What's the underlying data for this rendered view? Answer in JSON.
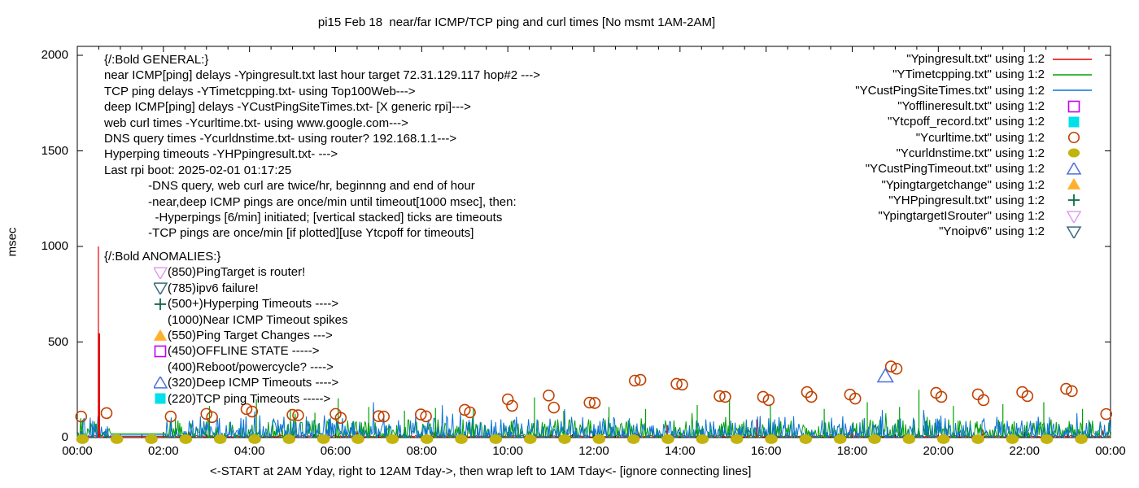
{
  "chart_data": {
    "type": "line",
    "title": "pi15 Feb 18  near/far ICMP/TCP ping and curl times [No msmt 1AM-2AM]",
    "xlabel": "<-START at 2AM Yday, right to 12AM Tday->, then wrap left to 1AM Tday<- [ignore connecting lines]",
    "ylabel": "msec",
    "ylim": [
      0,
      2000
    ],
    "xlim_hours": [
      0,
      24
    ],
    "y_ticks": [
      0,
      500,
      1000,
      1500,
      2000
    ],
    "x_ticks": [
      "00:00",
      "02:00",
      "04:00",
      "06:00",
      "08:00",
      "10:00",
      "12:00",
      "14:00",
      "16:00",
      "18:00",
      "20:00",
      "22:00",
      "00:00"
    ],
    "x_tick_hours": [
      0,
      2,
      4,
      6,
      8,
      10,
      12,
      14,
      16,
      18,
      20,
      22,
      24
    ],
    "x_minor_step_hours": 0.5,
    "grid": "off",
    "legend_position": "top-right",
    "no_measurement_gap_hours": [
      0.78,
      2.05
    ],
    "series": [
      {
        "name": "\"Ypingresult.txt\" using 1:2",
        "style": "line",
        "color": "#e60000",
        "seed": 11,
        "noise": {
          "base": 3,
          "amp": 8,
          "pow": 1.2,
          "spike_p": 0.012,
          "spike_amp": 40
        },
        "gap_value": 6,
        "impulses": [
          [
            0.49,
            1000,
            1.2
          ],
          [
            0.505,
            545,
            2.6
          ],
          [
            13.7,
            65,
            1
          ],
          [
            15.78,
            95,
            1
          ]
        ]
      },
      {
        "name": "\"YTimetcpping.txt\" using 1:2",
        "style": "line",
        "color": "#00a000",
        "seed": 23,
        "noise": {
          "base": 2,
          "amp": 95,
          "pow": 3,
          "spike_p": 0.05,
          "spike_amp": 65
        },
        "gap_value": 20
      },
      {
        "name": "\"YCustPingSiteTimes.txt\" using 1:2",
        "style": "line",
        "color": "#0b72d8",
        "seed": 37,
        "noise": {
          "base": 2,
          "amp": 112,
          "pow": 3,
          "spike_p": 0.03,
          "spike_amp": 85
        },
        "gap_value": 13
      },
      {
        "name": "\"Yofflineresult.txt\" using 1:2",
        "style": "points",
        "marker": "open-square",
        "color": "#c000f0",
        "points": []
      },
      {
        "name": "\"Ytcpoff_record.txt\" using 1:2",
        "style": "points",
        "marker": "filled-square",
        "color": "#00e0e8",
        "points": []
      },
      {
        "name": "\"Ycurltime.txt\" using 1:2",
        "style": "points",
        "marker": "open-circle",
        "color": "#c04000",
        "points": [
          [
            0.09,
            110
          ],
          [
            0.68,
            128
          ],
          [
            2.17,
            110
          ],
          [
            3.0,
            124
          ],
          [
            3.13,
            107
          ],
          [
            3.93,
            149
          ],
          [
            4.06,
            136
          ],
          [
            5.0,
            119
          ],
          [
            5.13,
            117
          ],
          [
            6.0,
            124
          ],
          [
            6.12,
            103
          ],
          [
            7.0,
            112
          ],
          [
            7.12,
            110
          ],
          [
            7.98,
            121
          ],
          [
            8.1,
            111
          ],
          [
            9.0,
            145
          ],
          [
            9.12,
            132
          ],
          [
            10.0,
            200
          ],
          [
            10.1,
            166
          ],
          [
            10.95,
            220
          ],
          [
            11.07,
            157
          ],
          [
            11.9,
            183
          ],
          [
            12.02,
            181
          ],
          [
            12.95,
            298
          ],
          [
            13.08,
            302
          ],
          [
            13.92,
            281
          ],
          [
            14.05,
            277
          ],
          [
            14.92,
            217
          ],
          [
            15.05,
            213
          ],
          [
            15.93,
            213
          ],
          [
            16.06,
            196
          ],
          [
            16.95,
            238
          ],
          [
            17.05,
            213
          ],
          [
            17.95,
            225
          ],
          [
            18.07,
            204
          ],
          [
            18.9,
            372
          ],
          [
            19.03,
            360
          ],
          [
            19.95,
            234
          ],
          [
            20.07,
            213
          ],
          [
            20.92,
            226
          ],
          [
            21.05,
            196
          ],
          [
            21.95,
            238
          ],
          [
            22.07,
            217
          ],
          [
            22.97,
            255
          ],
          [
            23.1,
            243
          ],
          [
            23.9,
            123
          ]
        ]
      },
      {
        "name": "\"Ycurldnstime.txt\" using 1:2",
        "style": "points",
        "marker": "filled-dot",
        "color": "#c2b40c",
        "dots": {
          "start": 0.12,
          "end": 23.98,
          "step": 0.8,
          "value": 0
        }
      },
      {
        "name": "\"YCustPingTimeout.txt\" using 1:2",
        "style": "points",
        "marker": "open-triangle-up",
        "color": "#4c6fe0",
        "points": [
          [
            18.77,
            320
          ]
        ]
      },
      {
        "name": "\"Ypingtargetchange\" using 1:2",
        "style": "points",
        "marker": "filled-triangle-up",
        "color": "#ffb02c",
        "points": []
      },
      {
        "name": "\"YHPpingresult.txt\" using 1:2",
        "style": "impulses",
        "marker": "plus",
        "color": "#0e6b46",
        "impulse_color": "#00a000",
        "impulses": [
          [
            2.28,
            100
          ],
          [
            3.07,
            165
          ],
          [
            4.16,
            200
          ],
          [
            4.95,
            150
          ],
          [
            5.52,
            130
          ],
          [
            6.06,
            205
          ],
          [
            6.77,
            160
          ],
          [
            7.6,
            140
          ],
          [
            8.32,
            155
          ],
          [
            9.2,
            150
          ],
          [
            10.62,
            210
          ],
          [
            11.3,
            140
          ],
          [
            12.35,
            160
          ],
          [
            13.2,
            150
          ],
          [
            14.4,
            170
          ],
          [
            15.15,
            200
          ],
          [
            16.1,
            175
          ],
          [
            17.35,
            150
          ],
          [
            18.35,
            185
          ],
          [
            19.1,
            160
          ],
          [
            19.55,
            250
          ],
          [
            20.35,
            165
          ],
          [
            21.5,
            175
          ],
          [
            22.45,
            185
          ],
          [
            23.35,
            150
          ]
        ]
      },
      {
        "name": "\"YpingtargetISrouter\" using 1:2",
        "style": "points",
        "marker": "open-triangle-down",
        "color": "#e09df0",
        "points": []
      },
      {
        "name": "\"Ynoipv6\" using 1:2",
        "style": "points",
        "marker": "open-triangle-down",
        "color": "#3a6b80",
        "points": []
      }
    ]
  },
  "annotations": {
    "general": [
      "{/:Bold GENERAL:}",
      "near ICMP[ping] delays -Ypingresult.txt last hour target 72.31.129.117 hop#2 --->",
      "TCP ping delays -YTimetcpping.txt- using Top100Web--->",
      "deep ICMP[ping] delays -YCustPingSiteTimes.txt- [X generic rpi]--->",
      "web curl times -Ycurltime.txt- using www.google.com--->",
      "DNS query times -Ycurldnstime.txt- using router? 192.168.1.1--->",
      "Hyperping timeouts -YHPpingresult.txt- --->",
      "Last rpi boot: 2025-02-01 01:17:25",
      "             -DNS query, web curl are twice/hr, beginnng and end of hour",
      "             -near,deep ICMP pings are once/min until timeout[1000 msec], then:",
      "               -Hyperpings [6/min] initiated; [vertical stacked] ticks are timeouts",
      "             -TCP pings are once/min [if plotted][use Ytcpoff for timeouts]"
    ],
    "anomalies": [
      {
        "marker": "none",
        "color": "",
        "text": "{/:Bold ANOMALIES:}",
        "header": true
      },
      {
        "marker": "open-triangle-down",
        "color": "#e09df0",
        "text": "(850)PingTarget is router!"
      },
      {
        "marker": "open-triangle-down",
        "color": "#3a6b80",
        "text": "(785)ipv6 failure!"
      },
      {
        "marker": "plus",
        "color": "#0e6b46",
        "text": "(500+)Hyperping Timeouts ---->"
      },
      {
        "marker": "none",
        "color": "",
        "text": "(1000)Near ICMP Timeout spikes"
      },
      {
        "marker": "filled-triangle-up",
        "color": "#ffb02c",
        "text": "(550)Ping Target Changes --->"
      },
      {
        "marker": "open-square",
        "color": "#c000f0",
        "text": "(450)OFFLINE STATE ----->"
      },
      {
        "marker": "none",
        "color": "",
        "text": "(400)Reboot/powercycle? ---->"
      },
      {
        "marker": "open-triangle-up",
        "color": "#4c6fe0",
        "text": "(320)Deep ICMP Timeouts ---->"
      },
      {
        "marker": "filled-square",
        "color": "#00e0e8",
        "text": "(220)TCP ping Timeouts ----->"
      }
    ]
  }
}
